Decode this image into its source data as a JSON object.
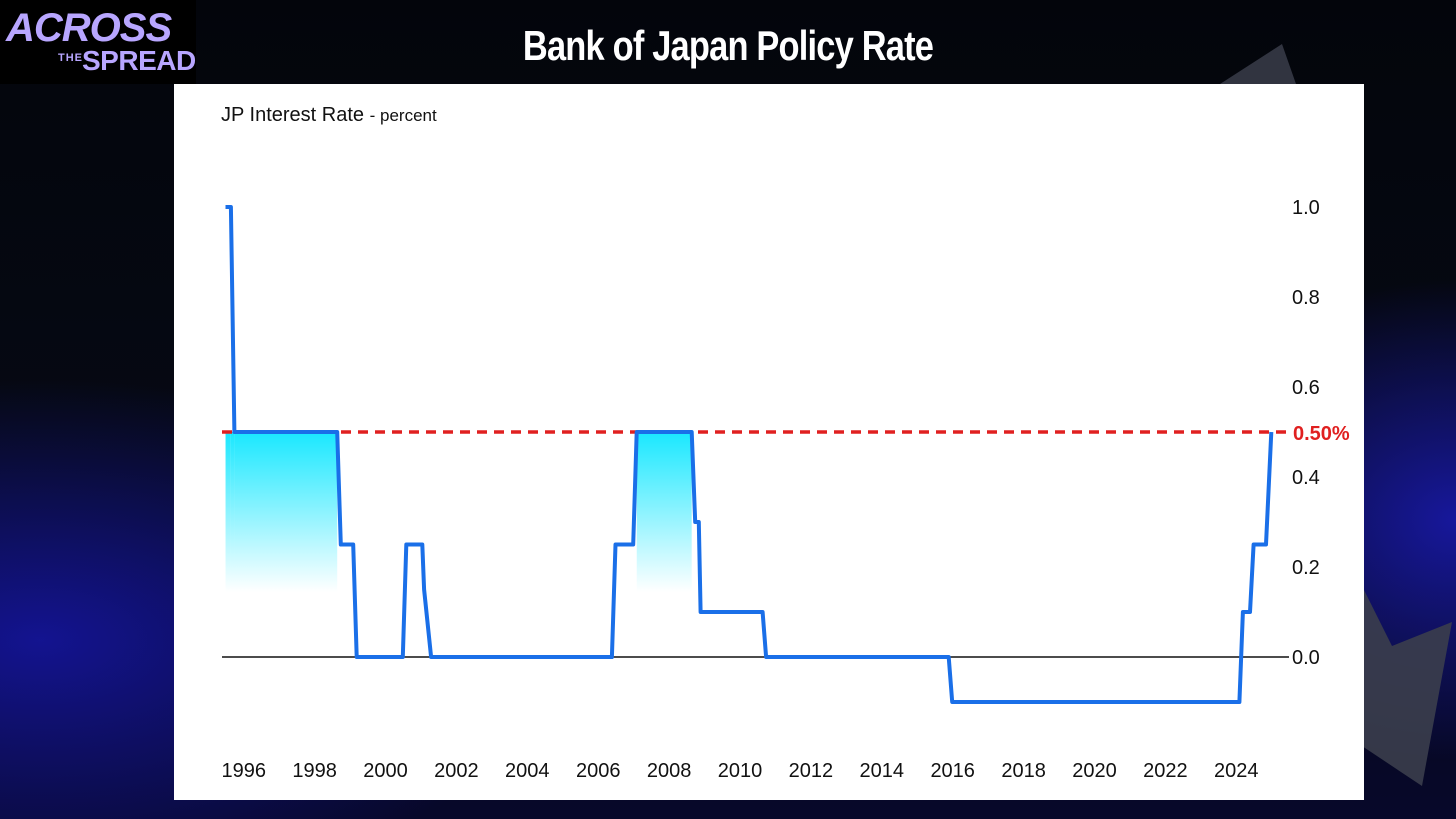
{
  "slide": {
    "title": "Bank of Japan Policy Rate",
    "logo": {
      "line1": "ACROSS",
      "line2": "THE",
      "line3": "SPREAD"
    },
    "colors": {
      "background": "#05070f",
      "accent": "#b8a6ff"
    }
  },
  "chart_data": {
    "type": "line",
    "title": "JP Interest Rate",
    "unit": "- percent",
    "xlabel": "",
    "ylabel": "",
    "xlim": [
      1995.5,
      2025.6
    ],
    "ylim": [
      -0.2,
      1.0
    ],
    "yticks": [
      0.0,
      0.2,
      0.4,
      0.6,
      0.8,
      1.0
    ],
    "ytick_labels": [
      "0.0",
      "0.2",
      "0.4",
      "0.6",
      "0.8",
      "1.0"
    ],
    "xticks": [
      1996,
      1998,
      2000,
      2002,
      2004,
      2006,
      2008,
      2010,
      2012,
      2014,
      2016,
      2018,
      2020,
      2022,
      2024
    ],
    "xtick_labels": [
      "1996",
      "1998",
      "2000",
      "2002",
      "2004",
      "2006",
      "2008",
      "2010",
      "2012",
      "2014",
      "2016",
      "2018",
      "2020",
      "2022",
      "2024"
    ],
    "y_axis_side": "right",
    "grid": false,
    "line_color": "#1a6fe8",
    "fill_color": "#00e5ff",
    "series": [
      {
        "points": [
          [
            1995.6,
            1.0
          ],
          [
            1995.75,
            1.0
          ],
          [
            1995.85,
            0.5
          ],
          [
            1998.75,
            0.5
          ],
          [
            1998.85,
            0.25
          ],
          [
            1999.2,
            0.25
          ],
          [
            1999.3,
            0.0
          ],
          [
            2000.6,
            0.0
          ],
          [
            2000.7,
            0.25
          ],
          [
            2001.15,
            0.25
          ],
          [
            2001.2,
            0.15
          ],
          [
            2001.4,
            0.0
          ],
          [
            2006.5,
            0.0
          ],
          [
            2006.6,
            0.25
          ],
          [
            2007.1,
            0.25
          ],
          [
            2007.2,
            0.5
          ],
          [
            2008.75,
            0.5
          ],
          [
            2008.85,
            0.3
          ],
          [
            2008.95,
            0.3
          ],
          [
            2009.0,
            0.1
          ],
          [
            2010.75,
            0.1
          ],
          [
            2010.85,
            0.0
          ],
          [
            2016.0,
            0.0
          ],
          [
            2016.1,
            -0.1
          ],
          [
            2024.2,
            -0.1
          ],
          [
            2024.3,
            0.1
          ],
          [
            2024.5,
            0.1
          ],
          [
            2024.6,
            0.25
          ],
          [
            2024.95,
            0.25
          ],
          [
            2025.1,
            0.5
          ]
        ]
      }
    ],
    "reference_line": {
      "value": 0.5,
      "label": "0.50%",
      "color": "#e02020",
      "style": "dashed"
    },
    "zero_line": {
      "value": 0.0,
      "color": "#111111"
    }
  }
}
